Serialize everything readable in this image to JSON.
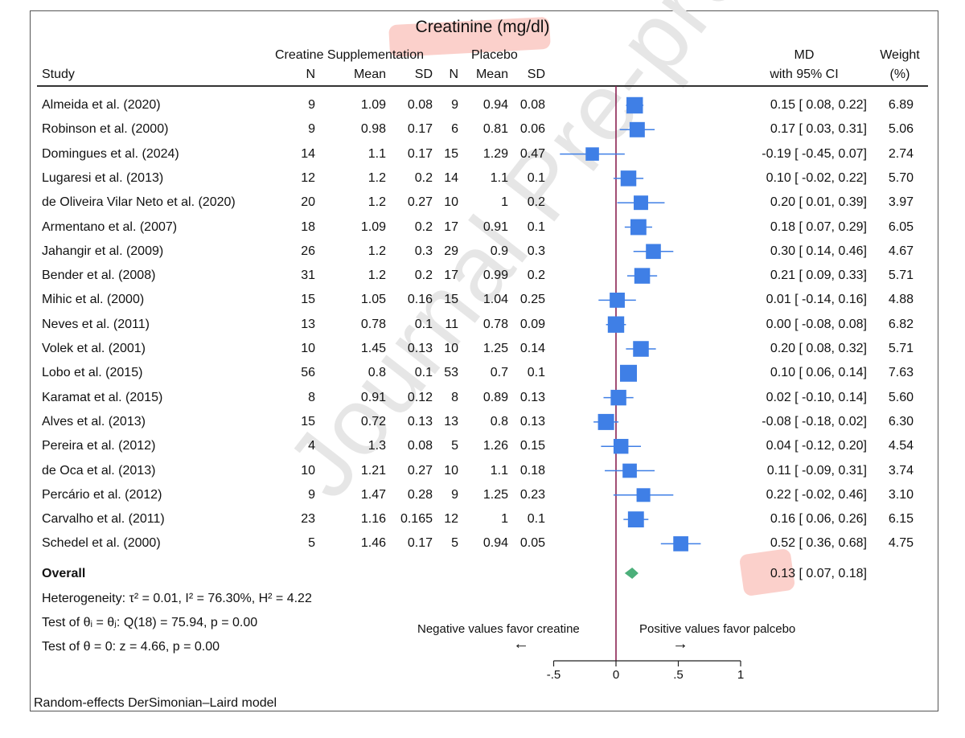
{
  "title": "Creatinine (mg/dl)",
  "headers": {
    "group1": "Creatine Supplementation",
    "group2": "Placebo",
    "study": "Study",
    "n": "N",
    "mean": "Mean",
    "sd": "SD",
    "md_line1": "MD",
    "md_line2": "with 95% CI",
    "weight_line1": "Weight",
    "weight_line2": "(%)"
  },
  "studies": [
    {
      "study": "Almeida et al. (2020)",
      "n1": "9",
      "mean1": "1.09",
      "sd1": "0.08",
      "n2": "9",
      "mean2": "0.94",
      "sd2": "0.08",
      "md": 0.15,
      "lo": 0.08,
      "hi": 0.22,
      "ci": "0.15 [ 0.08, 0.22]",
      "weight": "6.89"
    },
    {
      "study": "Robinson et al. (2000)",
      "n1": "9",
      "mean1": "0.98",
      "sd1": "0.17",
      "n2": "6",
      "mean2": "0.81",
      "sd2": "0.06",
      "md": 0.17,
      "lo": 0.03,
      "hi": 0.31,
      "ci": "0.17 [ 0.03, 0.31]",
      "weight": "5.06"
    },
    {
      "study": "Domingues et al. (2024)",
      "n1": "14",
      "mean1": "1.1",
      "sd1": "0.17",
      "n2": "15",
      "mean2": "1.29",
      "sd2": "0.47",
      "md": -0.19,
      "lo": -0.45,
      "hi": 0.07,
      "ci": "-0.19 [ -0.45, 0.07]",
      "weight": "2.74"
    },
    {
      "study": "Lugaresi et al. (2013)",
      "n1": "12",
      "mean1": "1.2",
      "sd1": "0.2",
      "n2": "14",
      "mean2": "1.1",
      "sd2": "0.1",
      "md": 0.1,
      "lo": -0.02,
      "hi": 0.22,
      "ci": "0.10 [ -0.02, 0.22]",
      "weight": "5.70"
    },
    {
      "study": "de Oliveira Vilar Neto et al. (2020)",
      "n1": "20",
      "mean1": "1.2",
      "sd1": "0.27",
      "n2": "10",
      "mean2": "1",
      "sd2": "0.2",
      "md": 0.2,
      "lo": 0.01,
      "hi": 0.39,
      "ci": "0.20 [ 0.01, 0.39]",
      "weight": "3.97"
    },
    {
      "study": "Armentano et al. (2007)",
      "n1": "18",
      "mean1": "1.09",
      "sd1": "0.2",
      "n2": "17",
      "mean2": "0.91",
      "sd2": "0.1",
      "md": 0.18,
      "lo": 0.07,
      "hi": 0.29,
      "ci": "0.18 [ 0.07, 0.29]",
      "weight": "6.05"
    },
    {
      "study": "Jahangir et al. (2009)",
      "n1": "26",
      "mean1": "1.2",
      "sd1": "0.3",
      "n2": "29",
      "mean2": "0.9",
      "sd2": "0.3",
      "md": 0.3,
      "lo": 0.14,
      "hi": 0.46,
      "ci": "0.30 [ 0.14, 0.46]",
      "weight": "4.67"
    },
    {
      "study": "Bender et al. (2008)",
      "n1": "31",
      "mean1": "1.2",
      "sd1": "0.2",
      "n2": "17",
      "mean2": "0.99",
      "sd2": "0.2",
      "md": 0.21,
      "lo": 0.09,
      "hi": 0.33,
      "ci": "0.21 [ 0.09, 0.33]",
      "weight": "5.71"
    },
    {
      "study": "Mihic et al. (2000)",
      "n1": "15",
      "mean1": "1.05",
      "sd1": "0.16",
      "n2": "15",
      "mean2": "1.04",
      "sd2": "0.25",
      "md": 0.01,
      "lo": -0.14,
      "hi": 0.16,
      "ci": "0.01 [ -0.14, 0.16]",
      "weight": "4.88"
    },
    {
      "study": "Neves et al. (2011)",
      "n1": "13",
      "mean1": "0.78",
      "sd1": "0.1",
      "n2": "11",
      "mean2": "0.78",
      "sd2": "0.09",
      "md": 0.0,
      "lo": -0.08,
      "hi": 0.08,
      "ci": "0.00 [ -0.08, 0.08]",
      "weight": "6.82"
    },
    {
      "study": "Volek  et al. (2001)",
      "n1": "10",
      "mean1": "1.45",
      "sd1": "0.13",
      "n2": "10",
      "mean2": "1.25",
      "sd2": "0.14",
      "md": 0.2,
      "lo": 0.08,
      "hi": 0.32,
      "ci": "0.20 [ 0.08, 0.32]",
      "weight": "5.71"
    },
    {
      "study": "Lobo et al. (2015)",
      "n1": "56",
      "mean1": "0.8",
      "sd1": "0.1",
      "n2": "53",
      "mean2": "0.7",
      "sd2": "0.1",
      "md": 0.1,
      "lo": 0.06,
      "hi": 0.14,
      "ci": "0.10 [ 0.06, 0.14]",
      "weight": "7.63"
    },
    {
      "study": "Karamat et al. (2015)",
      "n1": "8",
      "mean1": "0.91",
      "sd1": "0.12",
      "n2": "8",
      "mean2": "0.89",
      "sd2": "0.13",
      "md": 0.02,
      "lo": -0.1,
      "hi": 0.14,
      "ci": "0.02 [ -0.10, 0.14]",
      "weight": "5.60"
    },
    {
      "study": "Alves et al. (2013)",
      "n1": "15",
      "mean1": "0.72",
      "sd1": "0.13",
      "n2": "13",
      "mean2": "0.8",
      "sd2": "0.13",
      "md": -0.08,
      "lo": -0.18,
      "hi": 0.02,
      "ci": "-0.08 [ -0.18, 0.02]",
      "weight": "6.30"
    },
    {
      "study": "Pereira et al. (2012)",
      "n1": "4",
      "mean1": "1.3",
      "sd1": "0.08",
      "n2": "5",
      "mean2": "1.26",
      "sd2": "0.15",
      "md": 0.04,
      "lo": -0.12,
      "hi": 0.2,
      "ci": "0.04 [ -0.12, 0.20]",
      "weight": "4.54"
    },
    {
      "study": "de Oca et al. (2013)",
      "n1": "10",
      "mean1": "1.21",
      "sd1": "0.27",
      "n2": "10",
      "mean2": "1.1",
      "sd2": "0.18",
      "md": 0.11,
      "lo": -0.09,
      "hi": 0.31,
      "ci": "0.11 [ -0.09, 0.31]",
      "weight": "3.74"
    },
    {
      "study": "Percário et al. (2012)",
      "n1": "9",
      "mean1": "1.47",
      "sd1": "0.28",
      "n2": "9",
      "mean2": "1.25",
      "sd2": "0.23",
      "md": 0.22,
      "lo": -0.02,
      "hi": 0.46,
      "ci": "0.22 [ -0.02, 0.46]",
      "weight": "3.10"
    },
    {
      "study": "Carvalho et al. (2011)",
      "n1": "23",
      "mean1": "1.16",
      "sd1": "0.165",
      "n2": "12",
      "mean2": "1",
      "sd2": "0.1",
      "md": 0.16,
      "lo": 0.06,
      "hi": 0.26,
      "ci": "0.16 [ 0.06, 0.26]",
      "weight": "6.15"
    },
    {
      "study": "Schedel et al. (2000)",
      "n1": "5",
      "mean1": "1.46",
      "sd1": "0.17",
      "n2": "5",
      "mean2": "0.94",
      "sd2": "0.05",
      "md": 0.52,
      "lo": 0.36,
      "hi": 0.68,
      "ci": "0.52 [ 0.36, 0.68]",
      "weight": "4.75"
    }
  ],
  "overall": {
    "label": "Overall",
    "md": 0.13,
    "lo": 0.07,
    "hi": 0.18,
    "ci": "0.13 [ 0.07, 0.18]"
  },
  "stats": {
    "heterogeneity": "Heterogeneity: τ² = 0.01, I² = 76.30%, H² = 4.22",
    "test_equal": "Test of θᵢ = θⱼ: Q(18) = 75.94, p = 0.00",
    "test_zero": "Test of θ = 0: z = 4.66, p = 0.00"
  },
  "favor": {
    "negative": "Negative values favor creatine",
    "positive": "Positive values favor palcebo",
    "left_arrow": "←",
    "right_arrow": "→"
  },
  "axis": {
    "ticks": [
      -0.5,
      0,
      0.5,
      1
    ],
    "tick_labels": [
      "-.5",
      "0",
      ".5",
      "1"
    ]
  },
  "footer": "Random-effects DerSimonian–Laird model",
  "watermark": "Journal Pre-proof",
  "colors": {
    "box": "#3f7fe6",
    "diamond": "#4caf7a",
    "null_line": "#8b2252",
    "highlight": "#f7a9a0"
  },
  "chart_data": {
    "type": "forest",
    "title": "Creatinine (mg/dl)",
    "xlabel": "",
    "xlim": [
      -0.5,
      1
    ],
    "null_value": 0,
    "studies": [
      "Almeida et al. (2020)",
      "Robinson et al. (2000)",
      "Domingues et al. (2024)",
      "Lugaresi et al. (2013)",
      "de Oliveira Vilar Neto et al. (2020)",
      "Armentano et al. (2007)",
      "Jahangir et al. (2009)",
      "Bender et al. (2008)",
      "Mihic et al. (2000)",
      "Neves et al. (2011)",
      "Volek  et al. (2001)",
      "Lobo et al. (2015)",
      "Karamat et al. (2015)",
      "Alves et al. (2013)",
      "Pereira et al. (2012)",
      "de Oca et al. (2013)",
      "Percário et al. (2012)",
      "Carvalho et al. (2011)",
      "Schedel et al. (2000)"
    ],
    "md": [
      0.15,
      0.17,
      -0.19,
      0.1,
      0.2,
      0.18,
      0.3,
      0.21,
      0.01,
      0.0,
      0.2,
      0.1,
      0.02,
      -0.08,
      0.04,
      0.11,
      0.22,
      0.16,
      0.52
    ],
    "ci_low": [
      0.08,
      0.03,
      -0.45,
      -0.02,
      0.01,
      0.07,
      0.14,
      0.09,
      -0.14,
      -0.08,
      0.08,
      0.06,
      -0.1,
      -0.18,
      -0.12,
      -0.09,
      -0.02,
      0.06,
      0.36
    ],
    "ci_high": [
      0.22,
      0.31,
      0.07,
      0.22,
      0.39,
      0.29,
      0.46,
      0.33,
      0.16,
      0.08,
      0.32,
      0.14,
      0.14,
      0.02,
      0.2,
      0.31,
      0.46,
      0.26,
      0.68
    ],
    "weights": [
      6.89,
      5.06,
      2.74,
      5.7,
      3.97,
      6.05,
      4.67,
      5.71,
      4.88,
      6.82,
      5.71,
      7.63,
      5.6,
      6.3,
      4.54,
      3.74,
      3.1,
      6.15,
      4.75
    ],
    "overall": {
      "md": 0.13,
      "ci_low": 0.07,
      "ci_high": 0.18
    }
  }
}
